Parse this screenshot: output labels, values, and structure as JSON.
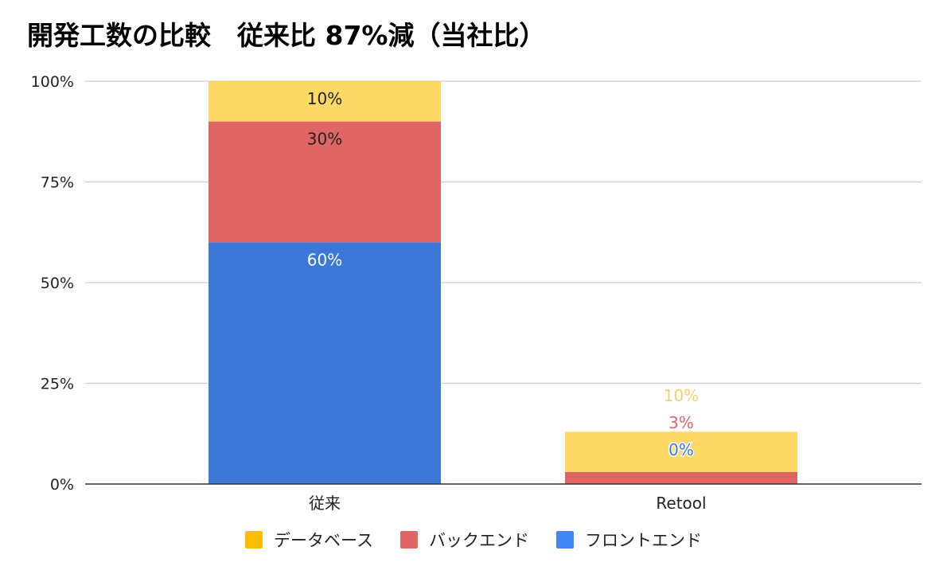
{
  "chart_data": {
    "type": "bar",
    "stacked": true,
    "title": "開発工数の比較　従来比 87%減（当社比）",
    "categories": [
      "従来",
      "Retool"
    ],
    "series": [
      {
        "name": "フロントエンド",
        "color": "#3c78d8",
        "legend_color": "#4285f4",
        "values": [
          60,
          0
        ],
        "labels": [
          "60%",
          "0%"
        ]
      },
      {
        "name": "バックエンド",
        "color": "#e06666",
        "legend_color": "#e06666",
        "values": [
          30,
          3
        ],
        "labels": [
          "30%",
          "3%"
        ]
      },
      {
        "name": "データベース",
        "color": "#ffd966",
        "legend_color": "#fbbc04",
        "values": [
          10,
          10
        ],
        "labels": [
          "10%",
          "10%"
        ]
      }
    ],
    "ylim": [
      0,
      100
    ],
    "yticks": [
      0,
      25,
      50,
      75,
      100
    ],
    "ytick_labels": [
      "0%",
      "25%",
      "50%",
      "75%",
      "100%"
    ],
    "xlabel": "",
    "ylabel": "",
    "grid": true,
    "legend_position": "bottom"
  }
}
